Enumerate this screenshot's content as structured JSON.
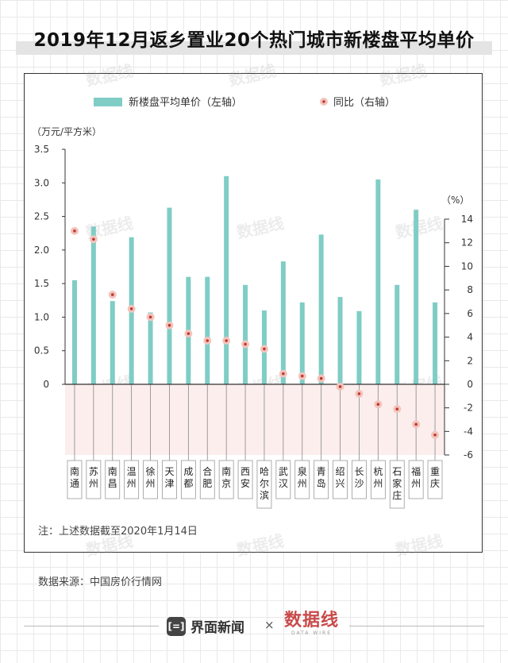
{
  "title": "2019年12月返乡置业20个热门城市新楼盘平均单价",
  "note": "注：上述数据截至2020年1月14日",
  "source": "数据来源：中国房价行情网",
  "footer": {
    "brand_jiemian": "界面新闻",
    "brand_jiemian_mark": "[=]",
    "times": "×",
    "brand_shujuxian": "数据线",
    "brand_shujuxian_sub": "DATA WIRE"
  },
  "watermark_text": "数据线",
  "colors": {
    "bar": "#7fcdc5",
    "dot_fill": "#f2c4bd",
    "dot_center": "#c0392b",
    "negative_band": "#fbeeed"
  },
  "chart_data": {
    "type": "bar",
    "categories": [
      "南通",
      "苏州",
      "南昌",
      "温州",
      "徐州",
      "天津",
      "成都",
      "合肥",
      "南京",
      "西安",
      "哈尔滨",
      "武汉",
      "泉州",
      "青岛",
      "绍兴",
      "长沙",
      "杭州",
      "石家庄",
      "福州",
      "重庆"
    ],
    "series": [
      {
        "name": "新楼盘平均单价（左轴）",
        "type": "bar",
        "axis": "left",
        "values": [
          1.55,
          2.35,
          1.24,
          2.19,
          1.07,
          2.63,
          1.6,
          1.6,
          3.1,
          1.48,
          1.1,
          1.83,
          1.22,
          2.23,
          1.3,
          1.09,
          3.05,
          1.48,
          2.6,
          1.22
        ]
      },
      {
        "name": "同比（右轴）",
        "type": "scatter",
        "axis": "right",
        "values": [
          13.0,
          12.3,
          7.6,
          6.4,
          5.7,
          5.0,
          4.3,
          3.7,
          3.7,
          3.4,
          3.0,
          0.9,
          0.7,
          0.5,
          -0.2,
          -0.8,
          -1.7,
          -2.1,
          -3.4,
          -4.3
        ]
      }
    ],
    "left_axis": {
      "label": "（万元/平方米）",
      "ylim": [
        0,
        3.5
      ],
      "ticks": [
        "3.5",
        "3.0",
        "2.5",
        "2.0",
        "1.5",
        "1.0",
        "0.5",
        "0"
      ]
    },
    "right_axis": {
      "label": "（%）",
      "ylim": [
        -6,
        14
      ],
      "ticks": [
        "14",
        "12",
        "10",
        "8",
        "6",
        "4",
        "2",
        "0",
        "-2",
        "-4",
        "-6"
      ]
    },
    "legend_position": "top"
  }
}
